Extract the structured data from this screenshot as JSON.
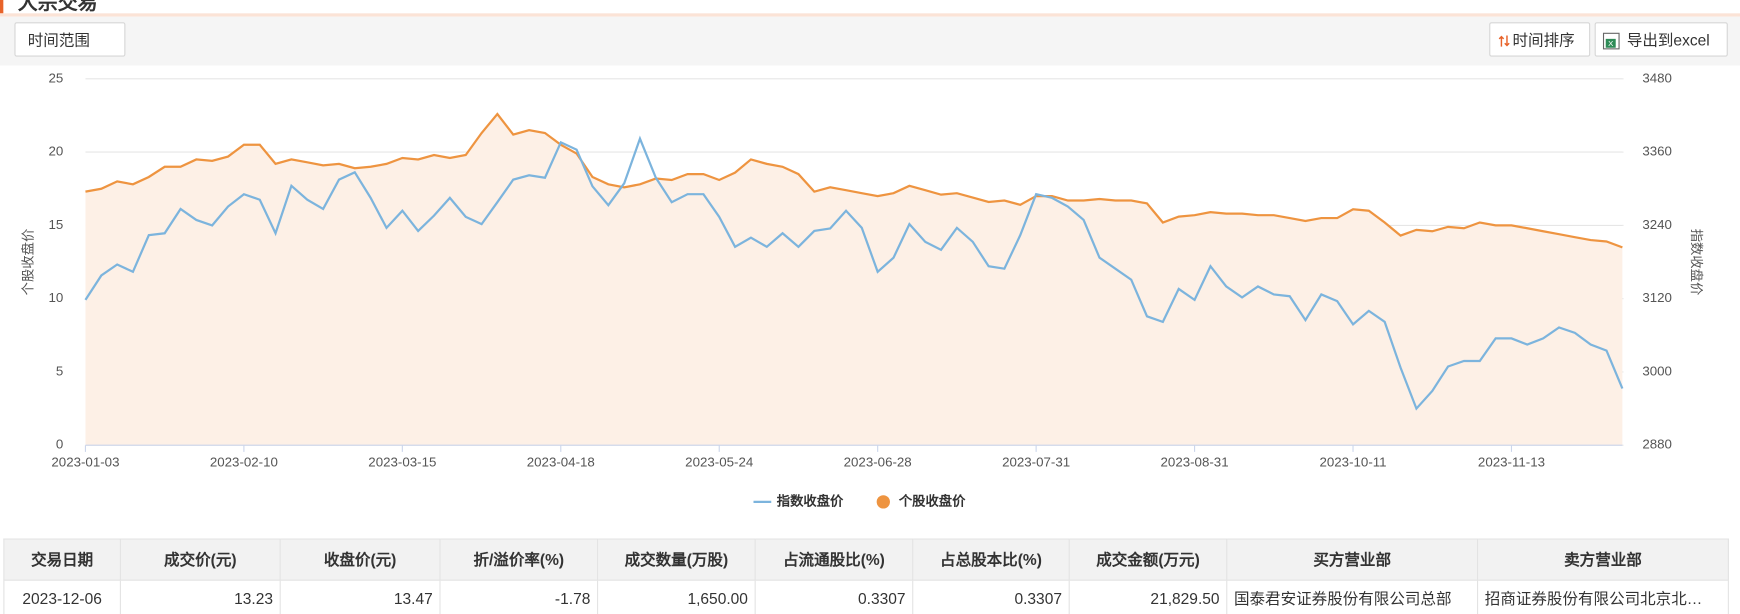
{
  "header": {
    "title": "大宗交易"
  },
  "toolbar": {
    "range_button": "时间范围",
    "sort_button": "时间排序",
    "export_button": "导出到excel"
  },
  "chart_data": {
    "type": "line",
    "categories": [
      "2023-01-03",
      null,
      null,
      null,
      null,
      null,
      null,
      null,
      null,
      null,
      "2023-02-10",
      null,
      null,
      null,
      null,
      null,
      null,
      null,
      null,
      null,
      "2023-03-15",
      null,
      null,
      null,
      null,
      null,
      null,
      null,
      null,
      null,
      "2023-04-18",
      null,
      null,
      null,
      null,
      null,
      null,
      null,
      null,
      null,
      "2023-05-24",
      null,
      null,
      null,
      null,
      null,
      null,
      null,
      null,
      null,
      "2023-06-28",
      null,
      null,
      null,
      null,
      null,
      null,
      null,
      null,
      null,
      "2023-07-31",
      null,
      null,
      null,
      null,
      null,
      null,
      null,
      null,
      null,
      "2023-08-31",
      null,
      null,
      null,
      null,
      null,
      null,
      null,
      null,
      null,
      "2023-10-11",
      null,
      null,
      null,
      null,
      null,
      null,
      null,
      null,
      null,
      "2023-11-13",
      null,
      null,
      null,
      null,
      null,
      null,
      null
    ],
    "series": [
      {
        "name": "指数收盘价",
        "color": "#7cb4dd",
        "axis": "y2",
        "values": [
          3118,
          3158,
          3176,
          3164,
          3224,
          3227,
          3267,
          3249,
          3240,
          3271,
          3291,
          3282,
          3227,
          3305,
          3282,
          3267,
          3315,
          3327,
          3285,
          3236,
          3264,
          3231,
          3256,
          3285,
          3254,
          3242,
          3278,
          3315,
          3322,
          3318,
          3376,
          3364,
          3304,
          3273,
          3309,
          3382,
          3318,
          3278,
          3291,
          3291,
          3254,
          3205,
          3220,
          3205,
          3227,
          3205,
          3231,
          3235,
          3264,
          3236,
          3164,
          3187,
          3242,
          3213,
          3200,
          3236,
          3213,
          3173,
          3169,
          3224,
          3291,
          3285,
          3271,
          3249,
          3187,
          3169,
          3151,
          3091,
          3082,
          3136,
          3118,
          3173,
          3140,
          3122,
          3140,
          3127,
          3124,
          3085,
          3127,
          3116,
          3078,
          3100,
          3082,
          3007,
          2940,
          2969,
          3009,
          3018,
          3018,
          3055,
          3055,
          3045,
          3055,
          3073,
          3064,
          3045,
          3035,
          2973
        ]
      },
      {
        "name": "个股收盘价",
        "color": "#ee9440",
        "area_color": "#fdf0e6",
        "values": [
          17.3,
          17.5,
          18.0,
          17.8,
          18.3,
          19.0,
          19.0,
          19.5,
          19.4,
          19.7,
          20.5,
          20.5,
          19.2,
          19.5,
          19.3,
          19.1,
          19.2,
          18.9,
          19.0,
          19.2,
          19.6,
          19.5,
          19.8,
          19.6,
          19.8,
          21.3,
          22.6,
          21.2,
          21.5,
          21.3,
          20.5,
          19.9,
          18.3,
          17.8,
          17.6,
          17.8,
          18.2,
          18.1,
          18.5,
          18.5,
          18.1,
          18.6,
          19.5,
          19.2,
          19.0,
          18.5,
          17.3,
          17.6,
          17.4,
          17.2,
          17.0,
          17.2,
          17.7,
          17.4,
          17.1,
          17.2,
          16.9,
          16.6,
          16.7,
          16.4,
          17.0,
          17.0,
          16.7,
          16.7,
          16.8,
          16.7,
          16.7,
          16.5,
          15.2,
          15.6,
          15.7,
          15.9,
          15.8,
          15.8,
          15.7,
          15.7,
          15.5,
          15.3,
          15.5,
          15.5,
          16.1,
          16.0,
          15.2,
          14.3,
          14.7,
          14.6,
          14.9,
          14.8,
          15.2,
          15.0,
          15.0,
          14.8,
          14.6,
          14.4,
          14.2,
          14.0,
          13.9,
          13.5
        ]
      }
    ],
    "ylabel": "个股收盘价",
    "y2label": "指数收盘价",
    "ylim": [
      0,
      25
    ],
    "yticks": [
      0,
      5,
      10,
      15,
      20,
      25
    ],
    "y2lim": [
      2880,
      3480
    ],
    "y2ticks": [
      2880,
      3000,
      3120,
      3240,
      3360,
      3480
    ],
    "grid": true,
    "legend": "bottom"
  },
  "table": {
    "columns": [
      "交易日期",
      "成交价(元)",
      "收盘价(元)",
      "折/溢价率(%)",
      "成交数量(万股)",
      "占流通股比(%)",
      "占总股本比(%)",
      "成交金额(万元)",
      "买方营业部",
      "卖方营业部"
    ],
    "rows": [
      [
        "2023-12-06",
        "13.23",
        "13.47",
        "-1.78",
        "1,650.00",
        "0.3307",
        "0.3307",
        "21,829.50",
        "国泰君安证券股份有限公司总部",
        "招商证券股份有限公司北京北…"
      ]
    ]
  }
}
